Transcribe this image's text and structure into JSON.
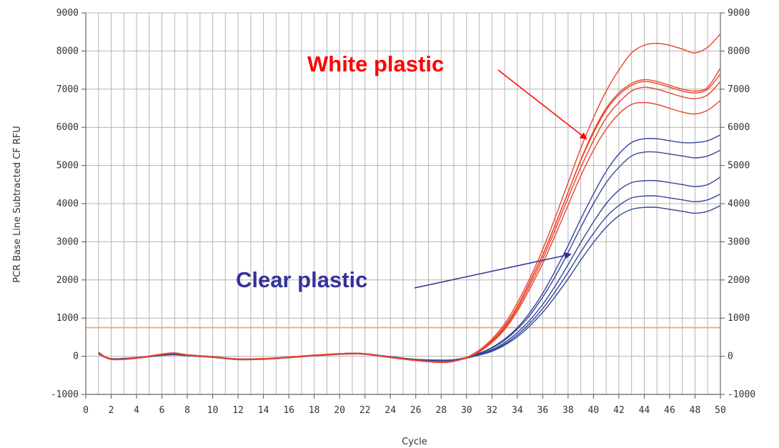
{
  "chart_data": {
    "type": "line",
    "xlabel": "Cycle",
    "ylabel": "PCR Base Line Subtracted CF RFU",
    "xlim": [
      0,
      50
    ],
    "ylim": [
      -1000,
      9000
    ],
    "x_ticks": [
      0,
      2,
      4,
      6,
      8,
      10,
      12,
      14,
      16,
      18,
      20,
      22,
      24,
      26,
      28,
      30,
      32,
      34,
      36,
      38,
      40,
      42,
      44,
      46,
      48,
      50
    ],
    "y_ticks": [
      -1000,
      0,
      1000,
      2000,
      3000,
      4000,
      5000,
      6000,
      7000,
      8000,
      9000
    ],
    "y_tick_labels": [
      "-1000",
      "0",
      "1000",
      "2000",
      "3000",
      "4000",
      "5000",
      "6000",
      "7000",
      "8000",
      "9000"
    ],
    "grid": true,
    "threshold": 750,
    "colors": {
      "white_plastic": "#e8432a",
      "clear_plastic": "#34469a",
      "threshold": "#f0a060",
      "annot_red": "#ff0000",
      "annot_blue": "#333399"
    },
    "x": [
      1,
      2,
      4,
      6,
      7,
      8,
      10,
      12,
      14,
      16,
      18,
      20,
      21,
      22,
      24,
      26,
      28,
      29,
      30,
      31,
      32,
      33,
      34,
      35,
      36,
      37,
      38,
      39,
      40,
      41,
      42,
      43,
      44,
      45,
      46,
      47,
      48,
      49,
      50
    ],
    "series": [
      {
        "group": "White plastic",
        "values": [
          110,
          -70,
          -40,
          60,
          90,
          40,
          -10,
          -70,
          -60,
          -20,
          30,
          70,
          80,
          70,
          -20,
          -100,
          -150,
          -120,
          -30,
          160,
          450,
          850,
          1400,
          2050,
          2800,
          3650,
          4550,
          5450,
          6250,
          6950,
          7500,
          7950,
          8150,
          8200,
          8150,
          8050,
          7950,
          8100,
          8450
        ]
      },
      {
        "group": "White plastic",
        "values": [
          100,
          -80,
          -50,
          50,
          80,
          30,
          -20,
          -80,
          -70,
          -30,
          20,
          60,
          70,
          60,
          -30,
          -110,
          -160,
          -130,
          -40,
          130,
          400,
          780,
          1300,
          1950,
          2650,
          3450,
          4300,
          5150,
          5900,
          6500,
          6900,
          7150,
          7250,
          7200,
          7100,
          7000,
          6950,
          7050,
          7550
        ]
      },
      {
        "group": "White plastic",
        "values": [
          105,
          -75,
          -45,
          55,
          85,
          35,
          -15,
          -75,
          -65,
          -25,
          25,
          65,
          75,
          65,
          -25,
          -105,
          -155,
          -125,
          -35,
          140,
          410,
          790,
          1310,
          1960,
          2660,
          3460,
          4300,
          5130,
          5850,
          6450,
          6850,
          7100,
          7200,
          7150,
          7050,
          6950,
          6900,
          7000,
          7400
        ]
      },
      {
        "group": "White plastic",
        "values": [
          95,
          -85,
          -55,
          45,
          75,
          25,
          -25,
          -85,
          -75,
          -35,
          15,
          55,
          65,
          55,
          -35,
          -115,
          -165,
          -135,
          -45,
          120,
          380,
          740,
          1240,
          1870,
          2550,
          3330,
          4150,
          4950,
          5650,
          6250,
          6650,
          6950,
          7050,
          7000,
          6900,
          6800,
          6750,
          6850,
          7200
        ]
      },
      {
        "group": "White plastic",
        "values": [
          100,
          -80,
          -50,
          50,
          80,
          30,
          -20,
          -80,
          -70,
          -30,
          20,
          60,
          70,
          60,
          -30,
          -110,
          -160,
          -130,
          -40,
          115,
          360,
          700,
          1180,
          1780,
          2430,
          3180,
          3960,
          4730,
          5400,
          5950,
          6350,
          6600,
          6650,
          6600,
          6500,
          6400,
          6350,
          6450,
          6700
        ]
      },
      {
        "group": "Clear plastic",
        "values": [
          80,
          -60,
          -30,
          40,
          60,
          30,
          -10,
          -70,
          -60,
          -20,
          30,
          70,
          80,
          70,
          -10,
          -80,
          -100,
          -90,
          -30,
          80,
          230,
          450,
          750,
          1150,
          1650,
          2250,
          2900,
          3600,
          4250,
          4850,
          5300,
          5600,
          5700,
          5700,
          5650,
          5600,
          5600,
          5650,
          5800
        ]
      },
      {
        "group": "Clear plastic",
        "values": [
          75,
          -65,
          -35,
          35,
          55,
          25,
          -15,
          -75,
          -65,
          -25,
          25,
          65,
          75,
          65,
          -15,
          -85,
          -105,
          -95,
          -35,
          70,
          210,
          420,
          710,
          1080,
          1550,
          2100,
          2720,
          3380,
          4000,
          4550,
          4950,
          5250,
          5350,
          5350,
          5300,
          5250,
          5200,
          5250,
          5400
        ]
      },
      {
        "group": "Clear plastic",
        "values": [
          70,
          -70,
          -40,
          30,
          50,
          20,
          -20,
          -80,
          -70,
          -30,
          20,
          60,
          70,
          60,
          -20,
          -90,
          -110,
          -100,
          -40,
          50,
          170,
          360,
          620,
          950,
          1360,
          1850,
          2400,
          2980,
          3520,
          4000,
          4350,
          4550,
          4600,
          4600,
          4550,
          4500,
          4450,
          4500,
          4700
        ]
      },
      {
        "group": "Clear plastic",
        "values": [
          65,
          -75,
          -45,
          25,
          45,
          15,
          -25,
          -85,
          -75,
          -35,
          15,
          55,
          65,
          55,
          -25,
          -95,
          -115,
          -105,
          -45,
          40,
          150,
          320,
          560,
          870,
          1250,
          1700,
          2200,
          2730,
          3220,
          3650,
          3950,
          4150,
          4200,
          4200,
          4150,
          4100,
          4050,
          4100,
          4250
        ]
      },
      {
        "group": "Clear plastic",
        "values": [
          60,
          -80,
          -50,
          20,
          40,
          10,
          -30,
          -90,
          -80,
          -40,
          10,
          50,
          60,
          50,
          -30,
          -100,
          -120,
          -110,
          -50,
          30,
          130,
          290,
          510,
          800,
          1150,
          1570,
          2030,
          2520,
          2980,
          3380,
          3680,
          3850,
          3900,
          3900,
          3850,
          3800,
          3750,
          3800,
          3950
        ]
      }
    ],
    "annotations": [
      {
        "text": "White plastic"
      },
      {
        "text": "Clear plastic"
      }
    ]
  }
}
